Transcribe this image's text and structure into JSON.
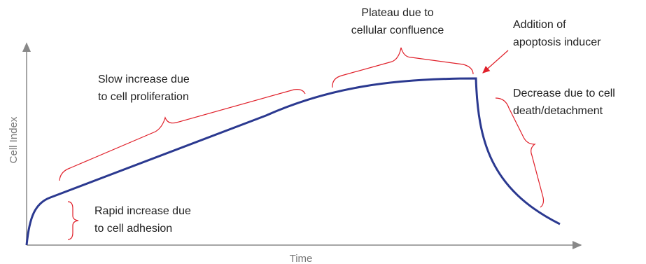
{
  "axes": {
    "x_label": "Time",
    "y_label": "Cell Index"
  },
  "annotations": [
    {
      "lines": [
        "Rapid increase due",
        "to cell adhesion"
      ]
    },
    {
      "lines": [
        "Slow increase due",
        "to cell proliferation"
      ]
    },
    {
      "lines": [
        "Plateau due to",
        "cellular confluence"
      ]
    },
    {
      "lines": [
        "Addition of",
        "apoptosis inducer"
      ]
    },
    {
      "lines": [
        "Decrease due to cell",
        "death/detachment"
      ]
    }
  ]
}
